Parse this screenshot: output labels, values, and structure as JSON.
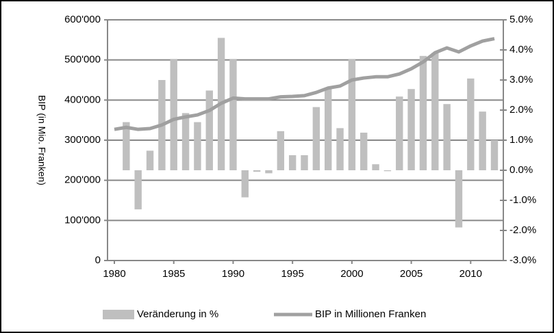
{
  "chart_data": {
    "type": "bar-line",
    "y_label": "BIP (in Mio. Franken)",
    "x": [
      1980,
      1981,
      1982,
      1983,
      1984,
      1985,
      1986,
      1987,
      1988,
      1989,
      1990,
      1991,
      1992,
      1993,
      1994,
      1995,
      1996,
      1997,
      1998,
      1999,
      2000,
      2001,
      2002,
      2003,
      2004,
      2005,
      2006,
      2007,
      2008,
      2009,
      2010,
      2011,
      2012
    ],
    "xlim": [
      1980,
      2012
    ],
    "xticks": [
      1980,
      1985,
      1990,
      1995,
      2000,
      2005,
      2010
    ],
    "ylim": [
      0,
      600000
    ],
    "yticks": [
      0,
      {
        "value": 100000,
        "label": "100'000"
      },
      {
        "value": 200000,
        "label": "200'000"
      },
      {
        "value": 300000,
        "label": "300'000"
      },
      {
        "value": 400000,
        "label": "400'000"
      },
      {
        "value": 500000,
        "label": "500'000"
      },
      {
        "value": 600000,
        "label": "600'000"
      }
    ],
    "y2lim": [
      -3,
      5
    ],
    "y2ticks": [
      {
        "value": -3,
        "label": "-3.0%"
      },
      {
        "value": -2,
        "label": "-2.0%"
      },
      {
        "value": -1,
        "label": "-1.0%"
      },
      {
        "value": 0,
        "label": "0.0%"
      },
      {
        "value": 1,
        "label": "1.0%"
      },
      {
        "value": 2,
        "label": "2.0%"
      },
      {
        "value": 3,
        "label": "3.0%"
      },
      {
        "value": 4,
        "label": "4.0%"
      },
      {
        "value": 5,
        "label": "5.0%"
      }
    ],
    "grid": true,
    "legend": "bottom",
    "series": [
      {
        "name": "Veränderung in %",
        "type": "bar",
        "axis": "y2",
        "color": "#bfbfbf",
        "values": [
          null,
          1.6,
          -1.3,
          0.65,
          3.0,
          3.7,
          1.9,
          1.6,
          2.65,
          4.4,
          3.7,
          -0.9,
          -0.05,
          -0.1,
          1.3,
          0.5,
          0.5,
          2.1,
          2.7,
          1.4,
          3.7,
          1.25,
          0.2,
          -0.03,
          2.45,
          2.7,
          3.8,
          3.9,
          2.2,
          -1.9,
          3.05,
          1.95,
          1.0
        ]
      },
      {
        "name": "BIP in Millionen Franken",
        "type": "line",
        "axis": "y",
        "color": "#a0a0a0",
        "values": [
          327000,
          332000,
          327000,
          329000,
          338000,
          352000,
          358000,
          363000,
          374000,
          392000,
          405000,
          403000,
          403000,
          403000,
          408000,
          409000,
          411000,
          419000,
          430000,
          435000,
          450000,
          455000,
          458000,
          458000,
          465000,
          478000,
          495000,
          518000,
          530000,
          520000,
          535000,
          547000,
          553000
        ]
      }
    ]
  }
}
